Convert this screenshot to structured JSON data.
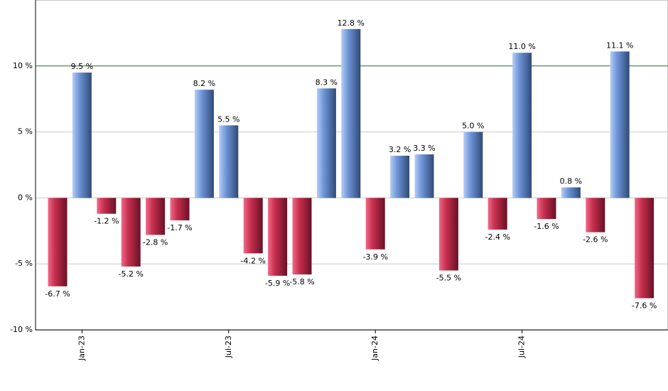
{
  "chart_data": {
    "type": "bar",
    "categories": [
      null,
      "Jan-23",
      null,
      null,
      null,
      null,
      null,
      "Jul-23",
      null,
      null,
      null,
      null,
      null,
      "Jan-24",
      null,
      null,
      null,
      null,
      null,
      "Jul-24",
      null,
      null,
      null,
      null,
      null
    ],
    "values": [
      -6.7,
      9.5,
      -1.2,
      -5.2,
      -2.8,
      -1.7,
      8.2,
      5.5,
      -4.2,
      -5.9,
      -5.8,
      8.3,
      12.8,
      -3.9,
      3.2,
      3.3,
      -5.5,
      5.0,
      -2.4,
      11.0,
      -1.6,
      0.8,
      -2.6,
      11.1,
      -7.6
    ],
    "value_labels": [
      "-6.7 %",
      "9.5 %",
      "-1.2 %",
      "-5.2 %",
      "-2.8 %",
      "-1.7 %",
      "8.2 %",
      "5.5 %",
      "-4.2 %",
      "-5.9 %",
      "-5.8 %",
      "8.3 %",
      "12.8 %",
      "-3.9 %",
      "3.2 %",
      "3.3 %",
      "-5.5 %",
      "5.0 %",
      "-2.4 %",
      "11.0 %",
      "-1.6 %",
      "0.8 %",
      "-2.6 %",
      "11.1 %",
      "-7.6 %"
    ],
    "positive_color": "#6f96d8",
    "negative_color": "#c8304f",
    "ylim": [
      -10,
      15
    ],
    "yticks": [
      {
        "value": -10,
        "label": "-10 %"
      },
      {
        "value": -5,
        "label": "-5 %"
      },
      {
        "value": 0,
        "label": "0 %"
      },
      {
        "value": 5,
        "label": "5 %"
      },
      {
        "value": 10,
        "label": "10 %"
      }
    ],
    "grid": true,
    "reference_line": {
      "value": 10,
      "color": "#2e7d32"
    }
  }
}
